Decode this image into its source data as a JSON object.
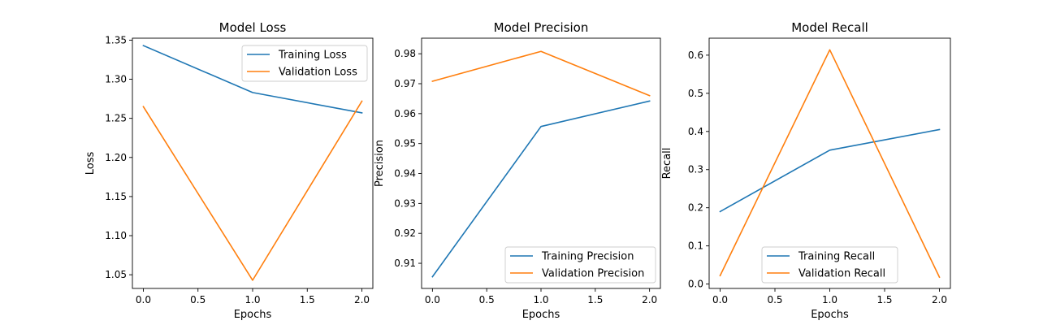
{
  "chart_data": [
    {
      "type": "line",
      "title": "Model Loss",
      "xlabel": "Epochs",
      "ylabel": "Loss",
      "xlim": [
        -0.1,
        2.1
      ],
      "ylim": [
        1.0325,
        1.3525
      ],
      "xticks": [
        0.0,
        0.5,
        1.0,
        1.5,
        2.0
      ],
      "xtick_labels": [
        "0.0",
        "0.5",
        "1.0",
        "1.5",
        "2.0"
      ],
      "yticks": [
        1.05,
        1.1,
        1.15,
        1.2,
        1.25,
        1.3,
        1.35
      ],
      "ytick_labels": [
        "1.05",
        "1.10",
        "1.15",
        "1.20",
        "1.25",
        "1.30",
        "1.35"
      ],
      "x": [
        0,
        1,
        2
      ],
      "series": [
        {
          "name": "Training Loss",
          "color": "#1f77b4",
          "values": [
            1.343,
            1.283,
            1.257
          ]
        },
        {
          "name": "Validation Loss",
          "color": "#ff7f0e",
          "values": [
            1.265,
            1.043,
            1.272
          ]
        }
      ],
      "grid": false,
      "legend_position": "upper right"
    },
    {
      "type": "line",
      "title": "Model Precision",
      "xlabel": "Epochs",
      "ylabel": "Precision",
      "xlim": [
        -0.1,
        2.1
      ],
      "ylim": [
        0.9016,
        0.9852
      ],
      "xticks": [
        0.0,
        0.5,
        1.0,
        1.5,
        2.0
      ],
      "xtick_labels": [
        "0.0",
        "0.5",
        "1.0",
        "1.5",
        "2.0"
      ],
      "yticks": [
        0.91,
        0.92,
        0.93,
        0.94,
        0.95,
        0.96,
        0.97,
        0.98
      ],
      "ytick_labels": [
        "0.91",
        "0.92",
        "0.93",
        "0.94",
        "0.95",
        "0.96",
        "0.97",
        "0.98"
      ],
      "x": [
        0,
        1,
        2
      ],
      "series": [
        {
          "name": "Training Precision",
          "color": "#1f77b4",
          "values": [
            0.9055,
            0.9557,
            0.9642
          ]
        },
        {
          "name": "Validation Precision",
          "color": "#ff7f0e",
          "values": [
            0.9708,
            0.9808,
            0.966
          ]
        }
      ],
      "grid": false,
      "legend_position": "lower right"
    },
    {
      "type": "line",
      "title": "Model Recall",
      "xlabel": "Epochs",
      "ylabel": "Recall",
      "xlim": [
        -0.1,
        2.1
      ],
      "ylim": [
        -0.0115,
        0.6445
      ],
      "xticks": [
        0.0,
        0.5,
        1.0,
        1.5,
        2.0
      ],
      "xtick_labels": [
        "0.0",
        "0.5",
        "1.0",
        "1.5",
        "2.0"
      ],
      "yticks": [
        0.0,
        0.1,
        0.2,
        0.3,
        0.4,
        0.5,
        0.6
      ],
      "ytick_labels": [
        "0.0",
        "0.1",
        "0.2",
        "0.3",
        "0.4",
        "0.5",
        "0.6"
      ],
      "x": [
        0,
        1,
        2
      ],
      "series": [
        {
          "name": "Training Recall",
          "color": "#1f77b4",
          "values": [
            0.19,
            0.351,
            0.405
          ]
        },
        {
          "name": "Validation Recall",
          "color": "#ff7f0e",
          "values": [
            0.022,
            0.614,
            0.018
          ]
        }
      ],
      "grid": false,
      "legend_position": "lower center"
    }
  ]
}
